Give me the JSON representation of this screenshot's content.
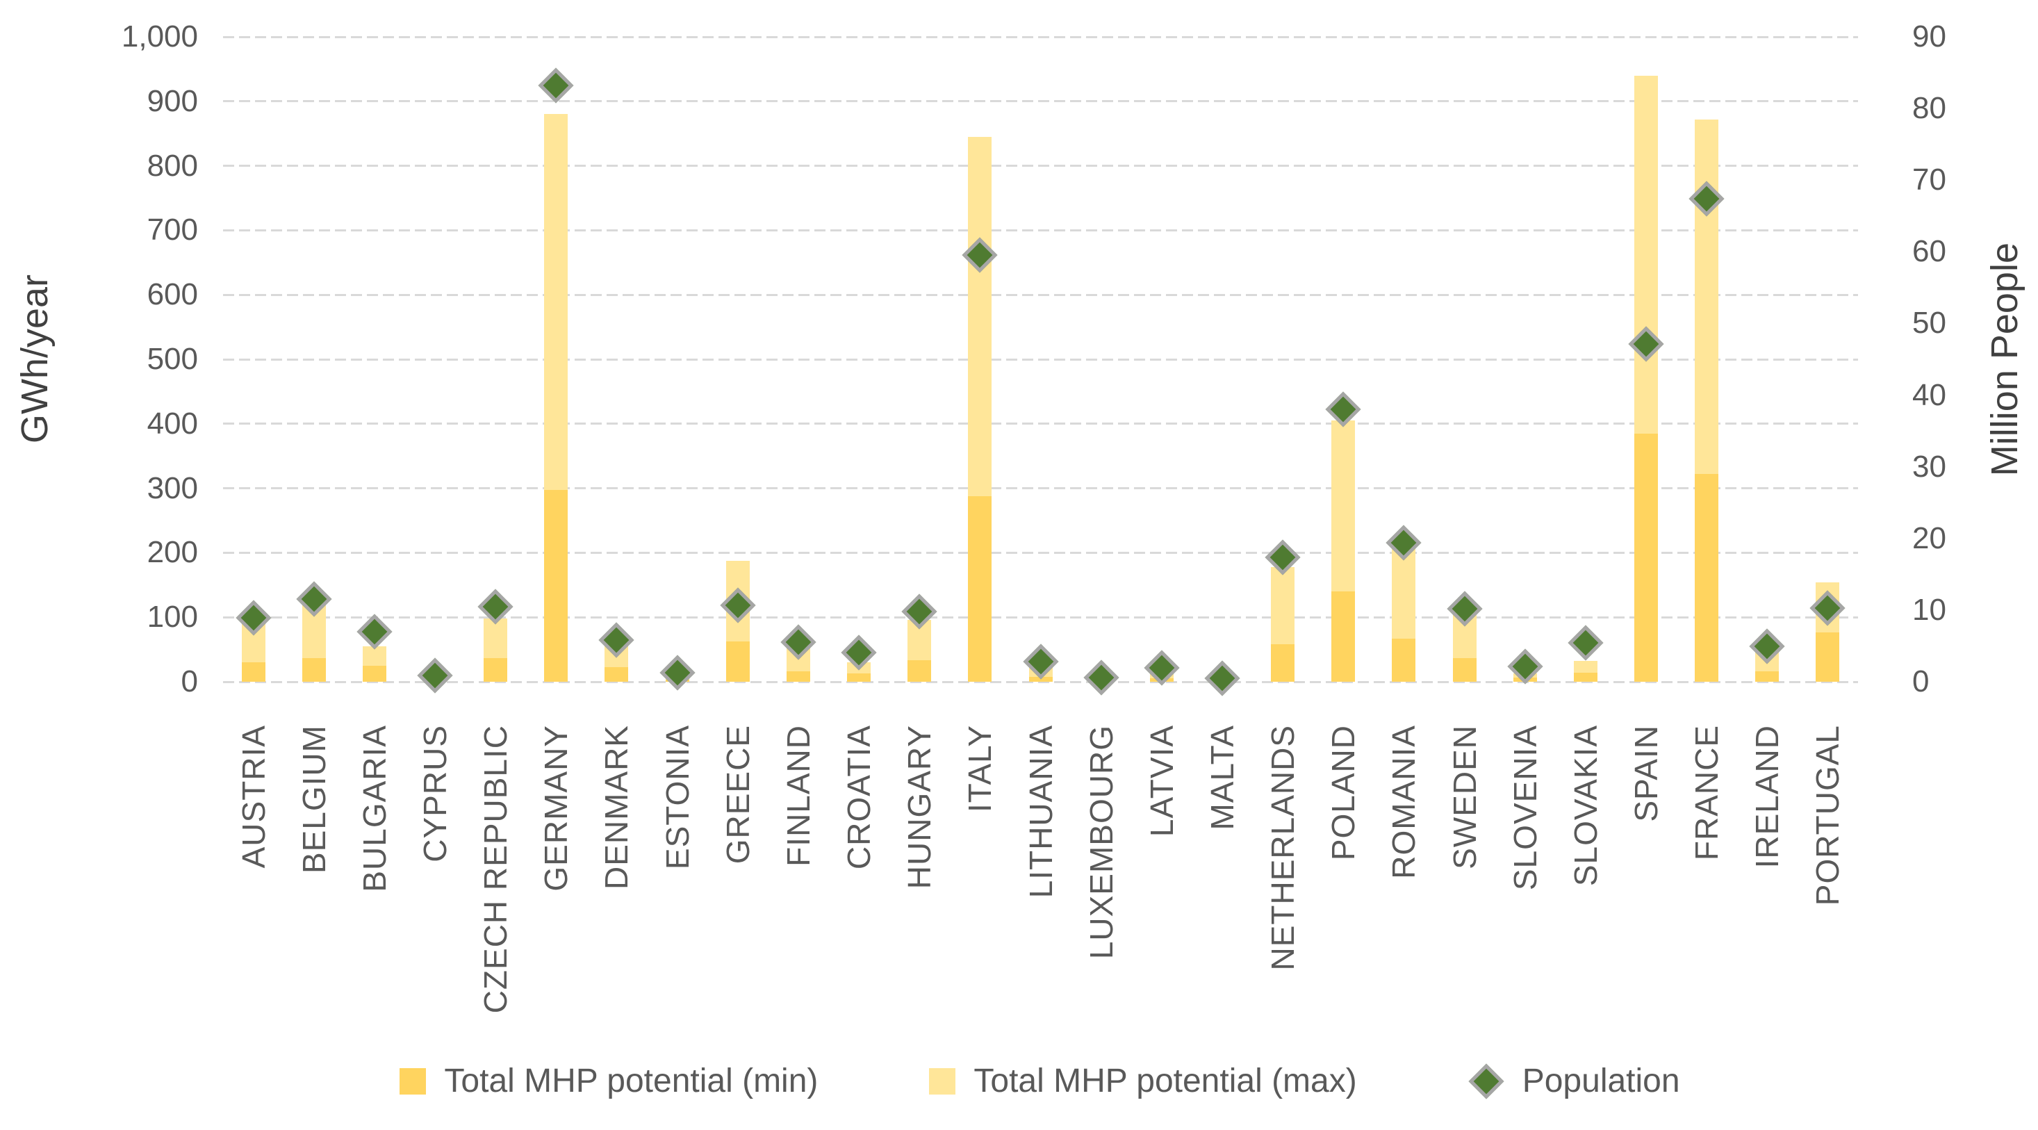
{
  "chart_data": {
    "type": "bar",
    "subtype": "stacked-bars-with-scatter-diamond-overlay",
    "title": "",
    "grid": true,
    "legend_position": "bottom",
    "left_axis": {
      "label": "GWh/year",
      "min": 0,
      "max": 1000,
      "step": 100,
      "tick_labels": [
        "1,000",
        "900",
        "800",
        "700",
        "600",
        "500",
        "400",
        "300",
        "200",
        "100",
        "0"
      ]
    },
    "right_axis": {
      "label": "Million People",
      "min": 0,
      "max": 90,
      "step": 10,
      "tick_labels": [
        "90",
        "80",
        "70",
        "60",
        "50",
        "40",
        "30",
        "20",
        "10",
        "0"
      ]
    },
    "categories": [
      "AUSTRIA",
      "BELGIUM",
      "BULGARIA",
      "CYPRUS",
      "CZECH REPUBLIC",
      "GERMANY",
      "DENMARK",
      "ESTONIA",
      "GREECE",
      "FINLAND",
      "CROATIA",
      "HUNGARY",
      "ITALY",
      "LITHUANIA",
      "LUXEMBOURG",
      "LATVIA",
      "MALTA",
      "NETHERLANDS",
      "POLAND",
      "ROMANIA",
      "SWEDEN",
      "SLOVENIA",
      "SLOVAKIA",
      "SPAIN",
      "FRANCE",
      "IRELAND",
      "PORTUGAL"
    ],
    "series": [
      {
        "name": "Total MHP potential (min)",
        "type": "bar",
        "axis": "left",
        "values": [
          30,
          37,
          25,
          1,
          37,
          297,
          23,
          3,
          63,
          16,
          13,
          33,
          288,
          8,
          1,
          5,
          0,
          58,
          140,
          67,
          37,
          6,
          14,
          385,
          322,
          16,
          76
        ]
      },
      {
        "name": "Total MHP potential (max)",
        "type": "bar-stacked-top",
        "axis": "left",
        "values": [
          92,
          120,
          55,
          3,
          98,
          880,
          66,
          9,
          188,
          55,
          30,
          96,
          845,
          25,
          3,
          15,
          1,
          178,
          405,
          210,
          112,
          13,
          32,
          940,
          872,
          56,
          154
        ]
      },
      {
        "name": "Population",
        "type": "scatter",
        "marker": "diamond",
        "axis": "right",
        "values": [
          8.9,
          11.5,
          7.0,
          0.9,
          10.5,
          83.2,
          5.8,
          1.3,
          10.7,
          5.5,
          4.1,
          9.8,
          59.5,
          2.8,
          0.6,
          1.9,
          0.5,
          17.4,
          38.0,
          19.4,
          10.2,
          2.1,
          5.4,
          47.1,
          67.4,
          4.9,
          10.3
        ]
      }
    ]
  },
  "legend": {
    "min_label": "Total MHP potential (min)",
    "max_label": "Total MHP potential (max)",
    "population_label": "Population"
  },
  "colors": {
    "bar_min": "#FFD45F",
    "bar_max": "#FFE699",
    "population_fill": "#4F7B31",
    "marker_border": "#A6A6A6",
    "gridline": "#D9D9D9",
    "text": "#595959"
  }
}
